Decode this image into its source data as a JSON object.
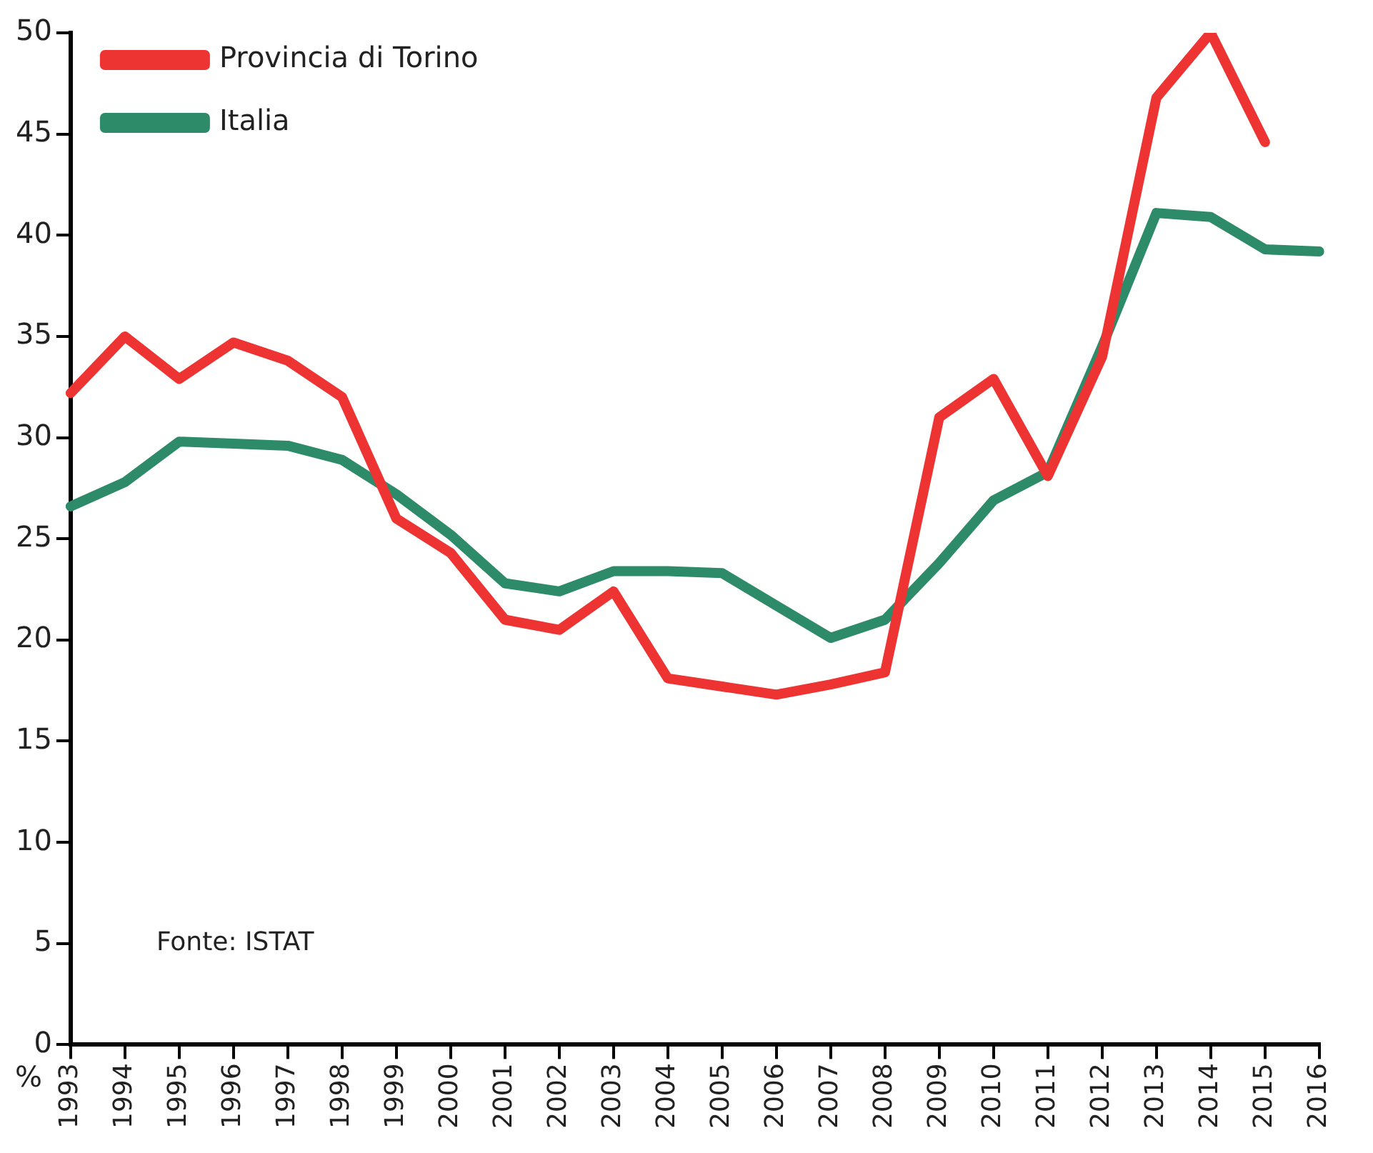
{
  "chart_data": {
    "type": "line",
    "ylabel": "%",
    "annotations": [
      "Fonte: ISTAT"
    ],
    "categories": [
      "1993",
      "1994",
      "1995",
      "1996",
      "1997",
      "1998",
      "1999",
      "2000",
      "2001",
      "2002",
      "2003",
      "2004",
      "2005",
      "2006",
      "2007",
      "2008",
      "2009",
      "2010",
      "2011",
      "2012",
      "2013",
      "2014",
      "2015",
      "2016"
    ],
    "series": [
      {
        "name": "Provincia di Torino",
        "color": "#ee3333",
        "values": [
          32.2,
          35.0,
          32.9,
          34.7,
          33.8,
          32.0,
          26.0,
          24.3,
          21.0,
          20.5,
          22.4,
          18.1,
          17.7,
          17.3,
          17.8,
          18.4,
          31.0,
          32.9,
          28.1,
          34.0,
          46.8,
          50.0,
          44.6,
          null
        ]
      },
      {
        "name": "Italia",
        "color": "#2e8b6a",
        "values": [
          26.6,
          27.8,
          29.8,
          29.7,
          29.6,
          28.9,
          27.2,
          25.2,
          22.8,
          22.4,
          23.4,
          23.4,
          23.3,
          21.7,
          20.1,
          21.0,
          23.8,
          26.9,
          28.3,
          34.5,
          41.1,
          40.9,
          39.3,
          39.2
        ]
      }
    ],
    "ylim": [
      0,
      50
    ],
    "yticks": [
      0,
      5,
      10,
      15,
      20,
      25,
      30,
      35,
      40,
      45,
      50
    ],
    "grid": false,
    "legend": "top left",
    "marker": "none",
    "line_style": "solid"
  }
}
